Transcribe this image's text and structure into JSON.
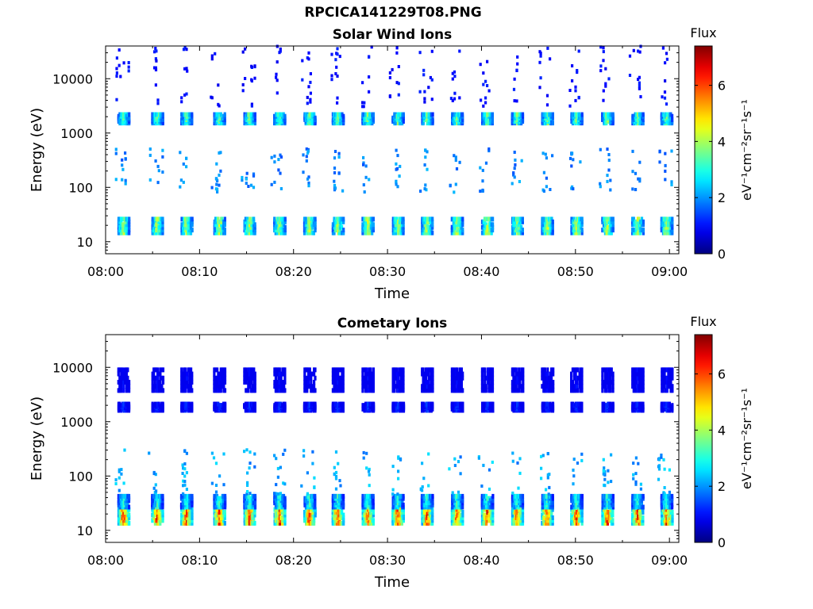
{
  "figure": {
    "title": "RPCICA141229T08.PNG"
  },
  "chart_data": [
    {
      "type": "heatmap",
      "title": "Solar Wind Ions",
      "xlabel": "Time",
      "ylabel": "Energy (eV)",
      "y_scale": "log",
      "xlim": [
        "08:00",
        "09:01"
      ],
      "ylim": [
        6,
        40000
      ],
      "x_ticks": [
        "08:00",
        "08:10",
        "08:20",
        "08:30",
        "08:40",
        "08:50",
        "09:00"
      ],
      "y_ticks": [
        "10",
        "100",
        "1000",
        "10000"
      ],
      "colorbar": {
        "title": "Flux",
        "label": "eV⁻¹cm⁻²sr⁻¹s⁻¹",
        "range": [
          0,
          7.4
        ],
        "ticks": [
          "0",
          "2",
          "4",
          "6"
        ],
        "colormap": "jet"
      },
      "burst_times": [
        "08:01.8",
        "08:05.4",
        "08:08.5",
        "08:12.0",
        "08:15.2",
        "08:18.4",
        "08:21.6",
        "08:24.6",
        "08:27.8",
        "08:31.0",
        "08:34.1",
        "08:37.3",
        "08:40.5",
        "08:43.7",
        "08:46.9",
        "08:50.0",
        "08:53.3",
        "08:56.5",
        "08:59.6"
      ],
      "bands": [
        {
          "energy_range": [
            14,
            28
          ],
          "peak_flux": 4.8
        },
        {
          "energy_range": [
            1500,
            2300
          ],
          "peak_flux": 4.2
        },
        {
          "energy_range": [
            80,
            500
          ],
          "peak_flux": 2.3
        },
        {
          "energy_range": [
            3000,
            40000
          ],
          "peak_flux": 1.2
        }
      ]
    },
    {
      "type": "heatmap",
      "title": "Cometary Ions",
      "xlabel": "Time",
      "ylabel": "Energy (eV)",
      "y_scale": "log",
      "xlim": [
        "08:00",
        "09:01"
      ],
      "ylim": [
        6,
        40000
      ],
      "x_ticks": [
        "08:00",
        "08:10",
        "08:20",
        "08:30",
        "08:40",
        "08:50",
        "09:00"
      ],
      "y_ticks": [
        "10",
        "100",
        "1000",
        "10000"
      ],
      "colorbar": {
        "title": "Flux",
        "label": "eV⁻¹cm⁻²sr⁻¹s⁻¹",
        "range": [
          0,
          7.4
        ],
        "ticks": [
          "0",
          "2",
          "4",
          "6"
        ],
        "colormap": "jet"
      },
      "burst_times": [
        "08:01.8",
        "08:05.4",
        "08:08.5",
        "08:12.0",
        "08:15.2",
        "08:18.4",
        "08:21.6",
        "08:24.6",
        "08:27.8",
        "08:31.0",
        "08:34.1",
        "08:37.3",
        "08:40.5",
        "08:43.7",
        "08:46.9",
        "08:50.0",
        "08:53.3",
        "08:56.5",
        "08:59.6"
      ],
      "bands": [
        {
          "energy_range": [
            13,
            26
          ],
          "peak_flux": 7.0
        },
        {
          "energy_range": [
            26,
            45
          ],
          "peak_flux": 3.6
        },
        {
          "energy_range": [
            45,
            300
          ],
          "peak_flux": 2.6
        },
        {
          "energy_range": [
            1600,
            2200
          ],
          "peak_flux": 1.5
        },
        {
          "energy_range": [
            3500,
            10000
          ],
          "peak_flux": 1.1
        }
      ]
    }
  ]
}
